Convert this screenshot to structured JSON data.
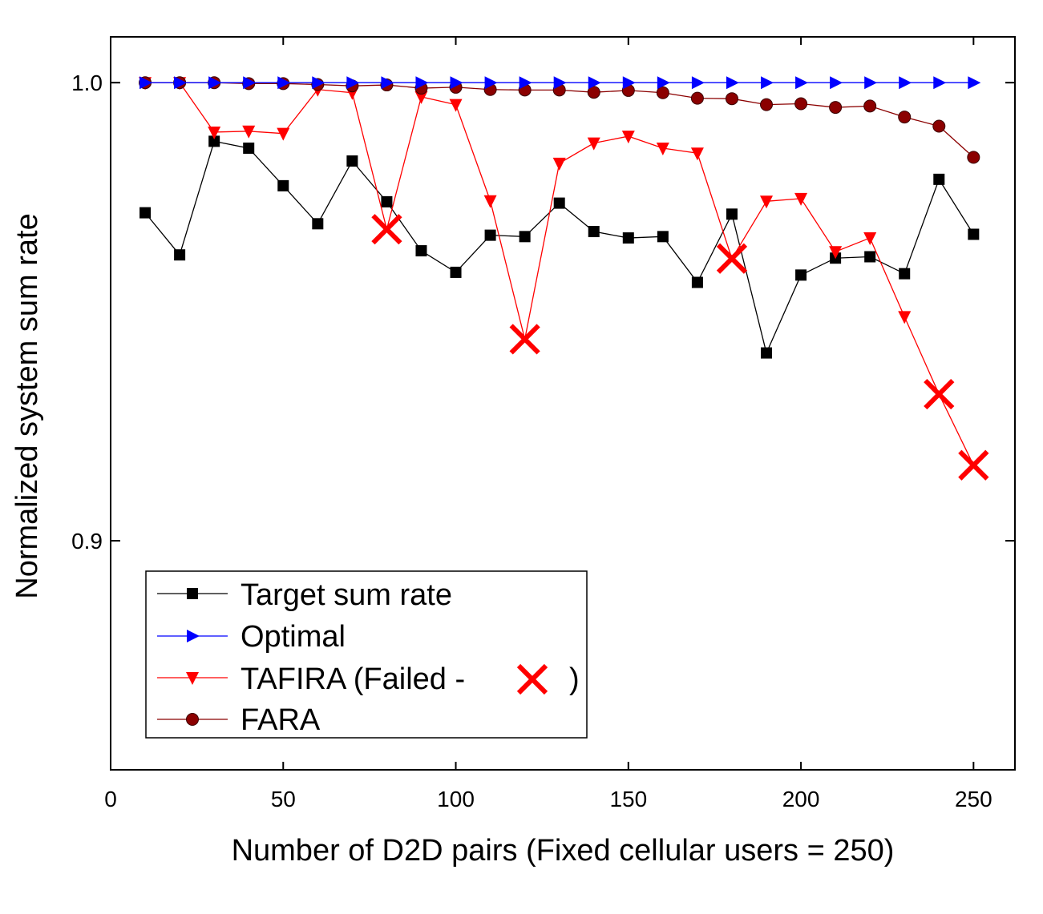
{
  "chart_data": {
    "type": "line",
    "title": "",
    "xlabel": "Number of D2D pairs (Fixed cellular users = 250)",
    "ylabel": "Normalized system sum rate",
    "xlim": [
      0,
      262
    ],
    "ylim": [
      0.85,
      1.01
    ],
    "xticks": [
      0,
      50,
      100,
      150,
      200,
      250
    ],
    "xtick_labels": [
      "0",
      "50",
      "100",
      "150",
      "200",
      "250"
    ],
    "yticks": [
      0.9,
      1.0
    ],
    "ytick_labels": [
      "0.9",
      "1.0"
    ],
    "grid": false,
    "legend_position": "bottom-left",
    "x": [
      10,
      20,
      30,
      40,
      50,
      60,
      70,
      80,
      90,
      100,
      110,
      120,
      130,
      140,
      150,
      160,
      170,
      180,
      190,
      200,
      210,
      220,
      230,
      240,
      250
    ],
    "series": [
      {
        "name": "Target sum rate",
        "color": "#000000",
        "marker": "square",
        "values": [
          0.9716,
          0.9624,
          0.9872,
          0.9857,
          0.9775,
          0.9692,
          0.9829,
          0.974,
          0.9633,
          0.9586,
          0.9667,
          0.9664,
          0.9737,
          0.9675,
          0.9661,
          0.9664,
          0.9564,
          0.9713,
          0.941,
          0.958,
          0.9617,
          0.962,
          0.9583,
          0.9789,
          0.9669
        ]
      },
      {
        "name": "Optimal",
        "color": "#0000ff",
        "marker": "triangle-right",
        "values": [
          1.0,
          1.0,
          1.0,
          1.0,
          1.0,
          1.0,
          1.0,
          1.0,
          1.0,
          1.0,
          1.0,
          1.0,
          1.0,
          1.0,
          1.0,
          1.0,
          1.0,
          1.0,
          1.0,
          1.0,
          1.0,
          1.0,
          1.0,
          1.0,
          1.0
        ]
      },
      {
        "name": "TAFIRA (Failed - ",
        "name_suffix": ")",
        "color": "#ff0000",
        "marker": "triangle-down",
        "values": [
          1.0,
          1.0,
          0.9892,
          0.9894,
          0.9889,
          0.9985,
          0.9978,
          0.968,
          0.9969,
          0.9952,
          0.9742,
          0.944,
          0.9824,
          0.9868,
          0.9883,
          0.9857,
          0.9846,
          0.9616,
          0.9741,
          0.9747,
          0.9631,
          0.9661,
          0.9489,
          0.932,
          0.9165
        ],
        "failed_x": [
          80,
          120,
          180,
          240,
          250
        ]
      },
      {
        "name": "FARA",
        "color": "#8b0000",
        "marker": "circle",
        "values": [
          1.0,
          1.0,
          1.0,
          0.9998,
          0.9998,
          0.9996,
          0.9993,
          0.9995,
          0.9988,
          0.999,
          0.9985,
          0.9984,
          0.9984,
          0.9979,
          0.9983,
          0.9978,
          0.9966,
          0.9965,
          0.9952,
          0.9954,
          0.9946,
          0.9949,
          0.9925,
          0.9905,
          0.9837
        ]
      }
    ]
  },
  "colors": {
    "failed_marker": "#ff0000"
  }
}
